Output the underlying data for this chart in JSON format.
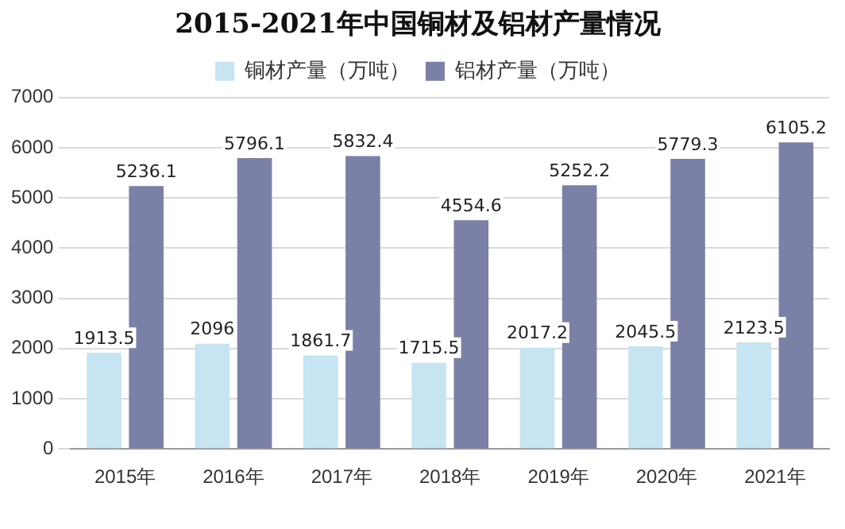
{
  "chart_data": {
    "type": "bar",
    "title": "2015-2021年中国铜材及铝材产量情况",
    "categories": [
      "2015年",
      "2016年",
      "2017年",
      "2018年",
      "2019年",
      "2020年",
      "2021年"
    ],
    "series": [
      {
        "name": "铜材产量（万吨）",
        "color": "#c6e4f1",
        "values": [
          1913.5,
          2096,
          1861.7,
          1715.5,
          2017.2,
          2045.5,
          2123.5
        ]
      },
      {
        "name": "铝材产量（万吨）",
        "color": "#7a80a6",
        "values": [
          5236.1,
          5796.1,
          5832.4,
          4554.6,
          5252.2,
          5779.3,
          6105.2
        ]
      }
    ],
    "ylim": [
      0,
      7000
    ],
    "yticks": [
      0,
      1000,
      2000,
      3000,
      4000,
      5000,
      6000,
      7000
    ],
    "grid": "y",
    "legend": "top",
    "data_labels": true
  }
}
